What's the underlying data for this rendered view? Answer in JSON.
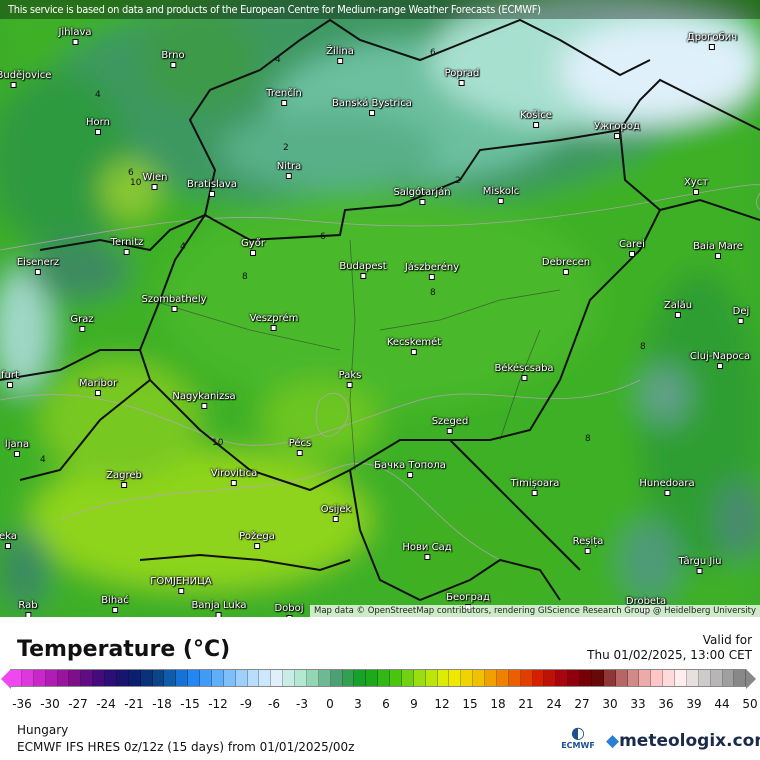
{
  "banner": "This service is based on data and products of the European Centre for Medium-range Weather Forecasts (ECMWF)",
  "attribution": "Map data © OpenStreetMap contributors, rendering GIScience Research Group @ Heidelberg University",
  "cities": [
    "Jihlava",
    "Brno",
    "Žilina",
    "Poprad",
    "Дрогобич",
    "ské Budějovice",
    "Trenčín",
    "Banská Bystrica",
    "Košice",
    "Ужгород",
    "Horn",
    "Wien",
    "Bratislava",
    "Nitra",
    "Salgótarján",
    "Miskolc",
    "Хуст",
    "Ternitz",
    "Győr",
    "Budapest",
    "Jászberény",
    "Debrecen",
    "Carei",
    "Baia Mare",
    "Eisenerz",
    "Szombathely",
    "Veszprém",
    "Zalău",
    "Graz",
    "Dej",
    "Kecskemét",
    "Cluj-Napoca",
    "Maribor",
    "Paks",
    "Békéscsaba",
    "Nagykanizsa",
    "Szeged",
    "Pécs",
    "ljana",
    "Бачка Топола",
    "Zagreb",
    "Virovitica",
    "Timișoara",
    "Hunedoara",
    "Osijek",
    "Нови Сад",
    "Požega",
    "Reșița",
    "eka",
    "Târgu Jiu",
    "ГОМЈЕНИЦА",
    "Bihać",
    "Banja Luka",
    "Doboj",
    "Београд",
    "Drobeta",
    "Rab",
    "furt"
  ],
  "contour_labels": [
    "4",
    "6",
    "2",
    "8",
    "10"
  ],
  "legend": {
    "title": "Temperature (°C)",
    "valid_label": "Valid for",
    "valid_time": "Thu 01/02/2025, 13:00 CET",
    "ticks": [
      "-36",
      "-30",
      "-27",
      "-24",
      "-21",
      "-18",
      "-15",
      "-12",
      "-9",
      "-6",
      "-3",
      "0",
      "3",
      "6",
      "9",
      "12",
      "15",
      "18",
      "21",
      "24",
      "27",
      "30",
      "33",
      "36",
      "39",
      "44",
      "50"
    ],
    "color_stops": [
      "#f048f0",
      "#c020c0",
      "#80108a",
      "#3a0a7a",
      "#0a1a6a",
      "#0a4a8a",
      "#1a80f0",
      "#60b0f8",
      "#b0d8fc",
      "#e0f0fc",
      "#a8e8c8",
      "#50a078",
      "#10a020",
      "#40c010",
      "#a0e010",
      "#f0f000",
      "#f0c000",
      "#f07000",
      "#d82000",
      "#a00010",
      "#600000",
      "#c07070",
      "#ffc0c0",
      "#fff0f0",
      "#c0c0c0",
      "#888888"
    ]
  },
  "region": "Hungary",
  "model": "ECMWF IFS HRES 0z/12z (15 days) from  01/01/2025/00z",
  "brand": {
    "ecmwf": "ECMWF",
    "meteologix": "meteologix.com"
  }
}
